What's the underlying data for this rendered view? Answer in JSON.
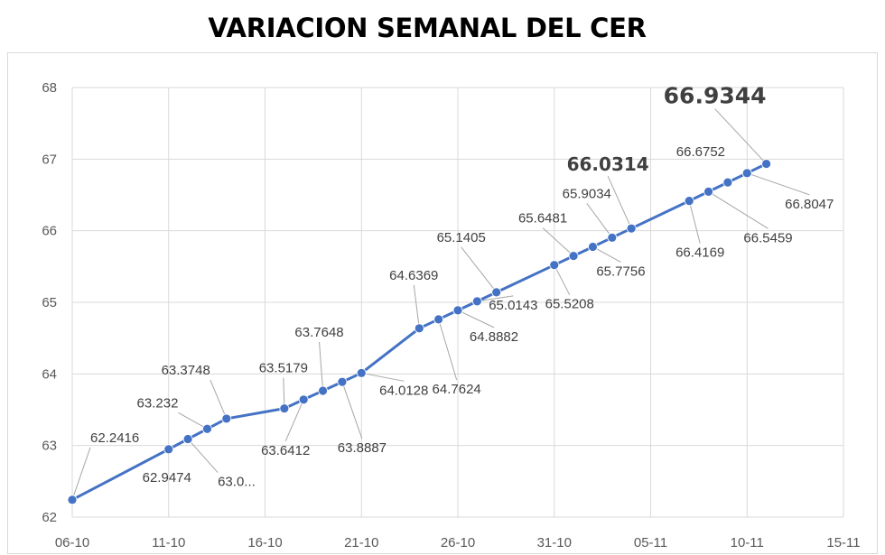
{
  "chart_data": {
    "type": "line",
    "title": "VARIACION SEMANAL DEL CER",
    "xlabel": "",
    "ylabel": "",
    "ylim": [
      62,
      68
    ],
    "yticks": [
      62,
      63,
      64,
      65,
      66,
      67,
      68
    ],
    "xlim": [
      "2023-10-06",
      "2023-11-15"
    ],
    "xtick_labels": [
      "06-10",
      "11-10",
      "16-10",
      "21-10",
      "26-10",
      "31-10",
      "05-11",
      "10-11",
      "15-11"
    ],
    "grid": true,
    "legend": "none",
    "line_color": "#4472c4",
    "points": [
      {
        "x": "2023-10-06",
        "y": 62.2416,
        "label": "62.2416"
      },
      {
        "x": "2023-10-11",
        "y": 62.9474,
        "label": "62.9474"
      },
      {
        "x": "2023-10-12",
        "y": 63.09,
        "label": "63.0..."
      },
      {
        "x": "2023-10-13",
        "y": 63.232,
        "label": "63.232"
      },
      {
        "x": "2023-10-14",
        "y": 63.3748,
        "label": "63.3748"
      },
      {
        "x": "2023-10-17",
        "y": 63.5179,
        "label": "63.5179"
      },
      {
        "x": "2023-10-18",
        "y": 63.6412,
        "label": "63.6412"
      },
      {
        "x": "2023-10-19",
        "y": 63.7648,
        "label": "63.7648"
      },
      {
        "x": "2023-10-20",
        "y": 63.8887,
        "label": "63.8887"
      },
      {
        "x": "2023-10-21",
        "y": 64.0128,
        "label": "64.0128"
      },
      {
        "x": "2023-10-24",
        "y": 64.6369,
        "label": "64.6369"
      },
      {
        "x": "2023-10-25",
        "y": 64.7624,
        "label": "64.7624"
      },
      {
        "x": "2023-10-26",
        "y": 64.8882,
        "label": "64.8882"
      },
      {
        "x": "2023-10-27",
        "y": 65.0143,
        "label": "65.0143"
      },
      {
        "x": "2023-10-28",
        "y": 65.1405,
        "label": "65.1405"
      },
      {
        "x": "2023-10-31",
        "y": 65.5208,
        "label": "65.5208"
      },
      {
        "x": "2023-11-01",
        "y": 65.6481,
        "label": "65.6481"
      },
      {
        "x": "2023-11-02",
        "y": 65.7756,
        "label": "65.7756"
      },
      {
        "x": "2023-11-03",
        "y": 65.9034,
        "label": "65.9034"
      },
      {
        "x": "2023-11-04",
        "y": 66.0314,
        "label": "66.0314"
      },
      {
        "x": "2023-11-07",
        "y": 66.4169,
        "label": "66.4169"
      },
      {
        "x": "2023-11-08",
        "y": 66.5459,
        "label": "66.5459"
      },
      {
        "x": "2023-11-09",
        "y": 66.6752,
        "label": "66.6752"
      },
      {
        "x": "2023-11-10",
        "y": 66.8047,
        "label": "66.8047"
      },
      {
        "x": "2023-11-11",
        "y": 66.9344,
        "label": "66.9344"
      }
    ]
  }
}
